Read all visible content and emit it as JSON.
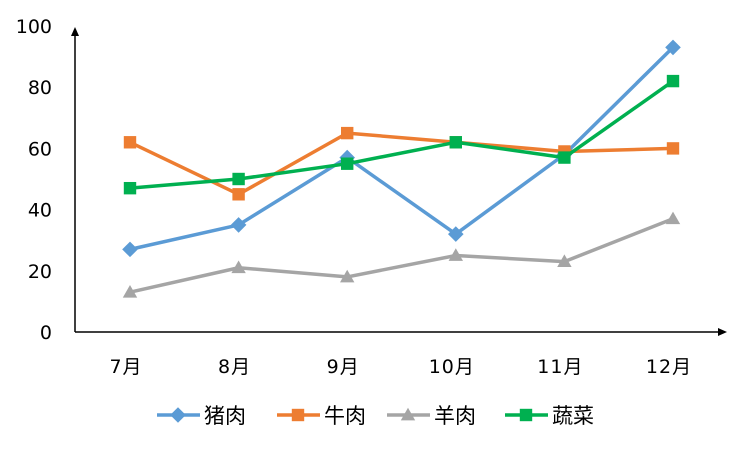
{
  "chart_data": {
    "type": "line",
    "categories": [
      "7月",
      "8月",
      "9月",
      "10月",
      "11月",
      "12月"
    ],
    "series": [
      {
        "name": "猪肉",
        "color": "#5B9BD5",
        "marker": "diamond",
        "values": [
          27,
          35,
          57,
          32,
          58,
          93
        ]
      },
      {
        "name": "牛肉",
        "color": "#ED7D31",
        "marker": "square",
        "values": [
          62,
          45,
          65,
          62,
          59,
          60
        ]
      },
      {
        "name": "羊肉",
        "color": "#A5A5A5",
        "marker": "triangle",
        "values": [
          13,
          21,
          18,
          25,
          23,
          37
        ]
      },
      {
        "name": "蔬菜",
        "color": "#00B050",
        "marker": "square",
        "values": [
          47,
          50,
          55,
          62,
          57,
          82
        ]
      }
    ],
    "ylim": [
      0,
      100
    ],
    "yticks": [
      0,
      20,
      40,
      60,
      80,
      100
    ],
    "grid": false,
    "legend": "bottom"
  }
}
